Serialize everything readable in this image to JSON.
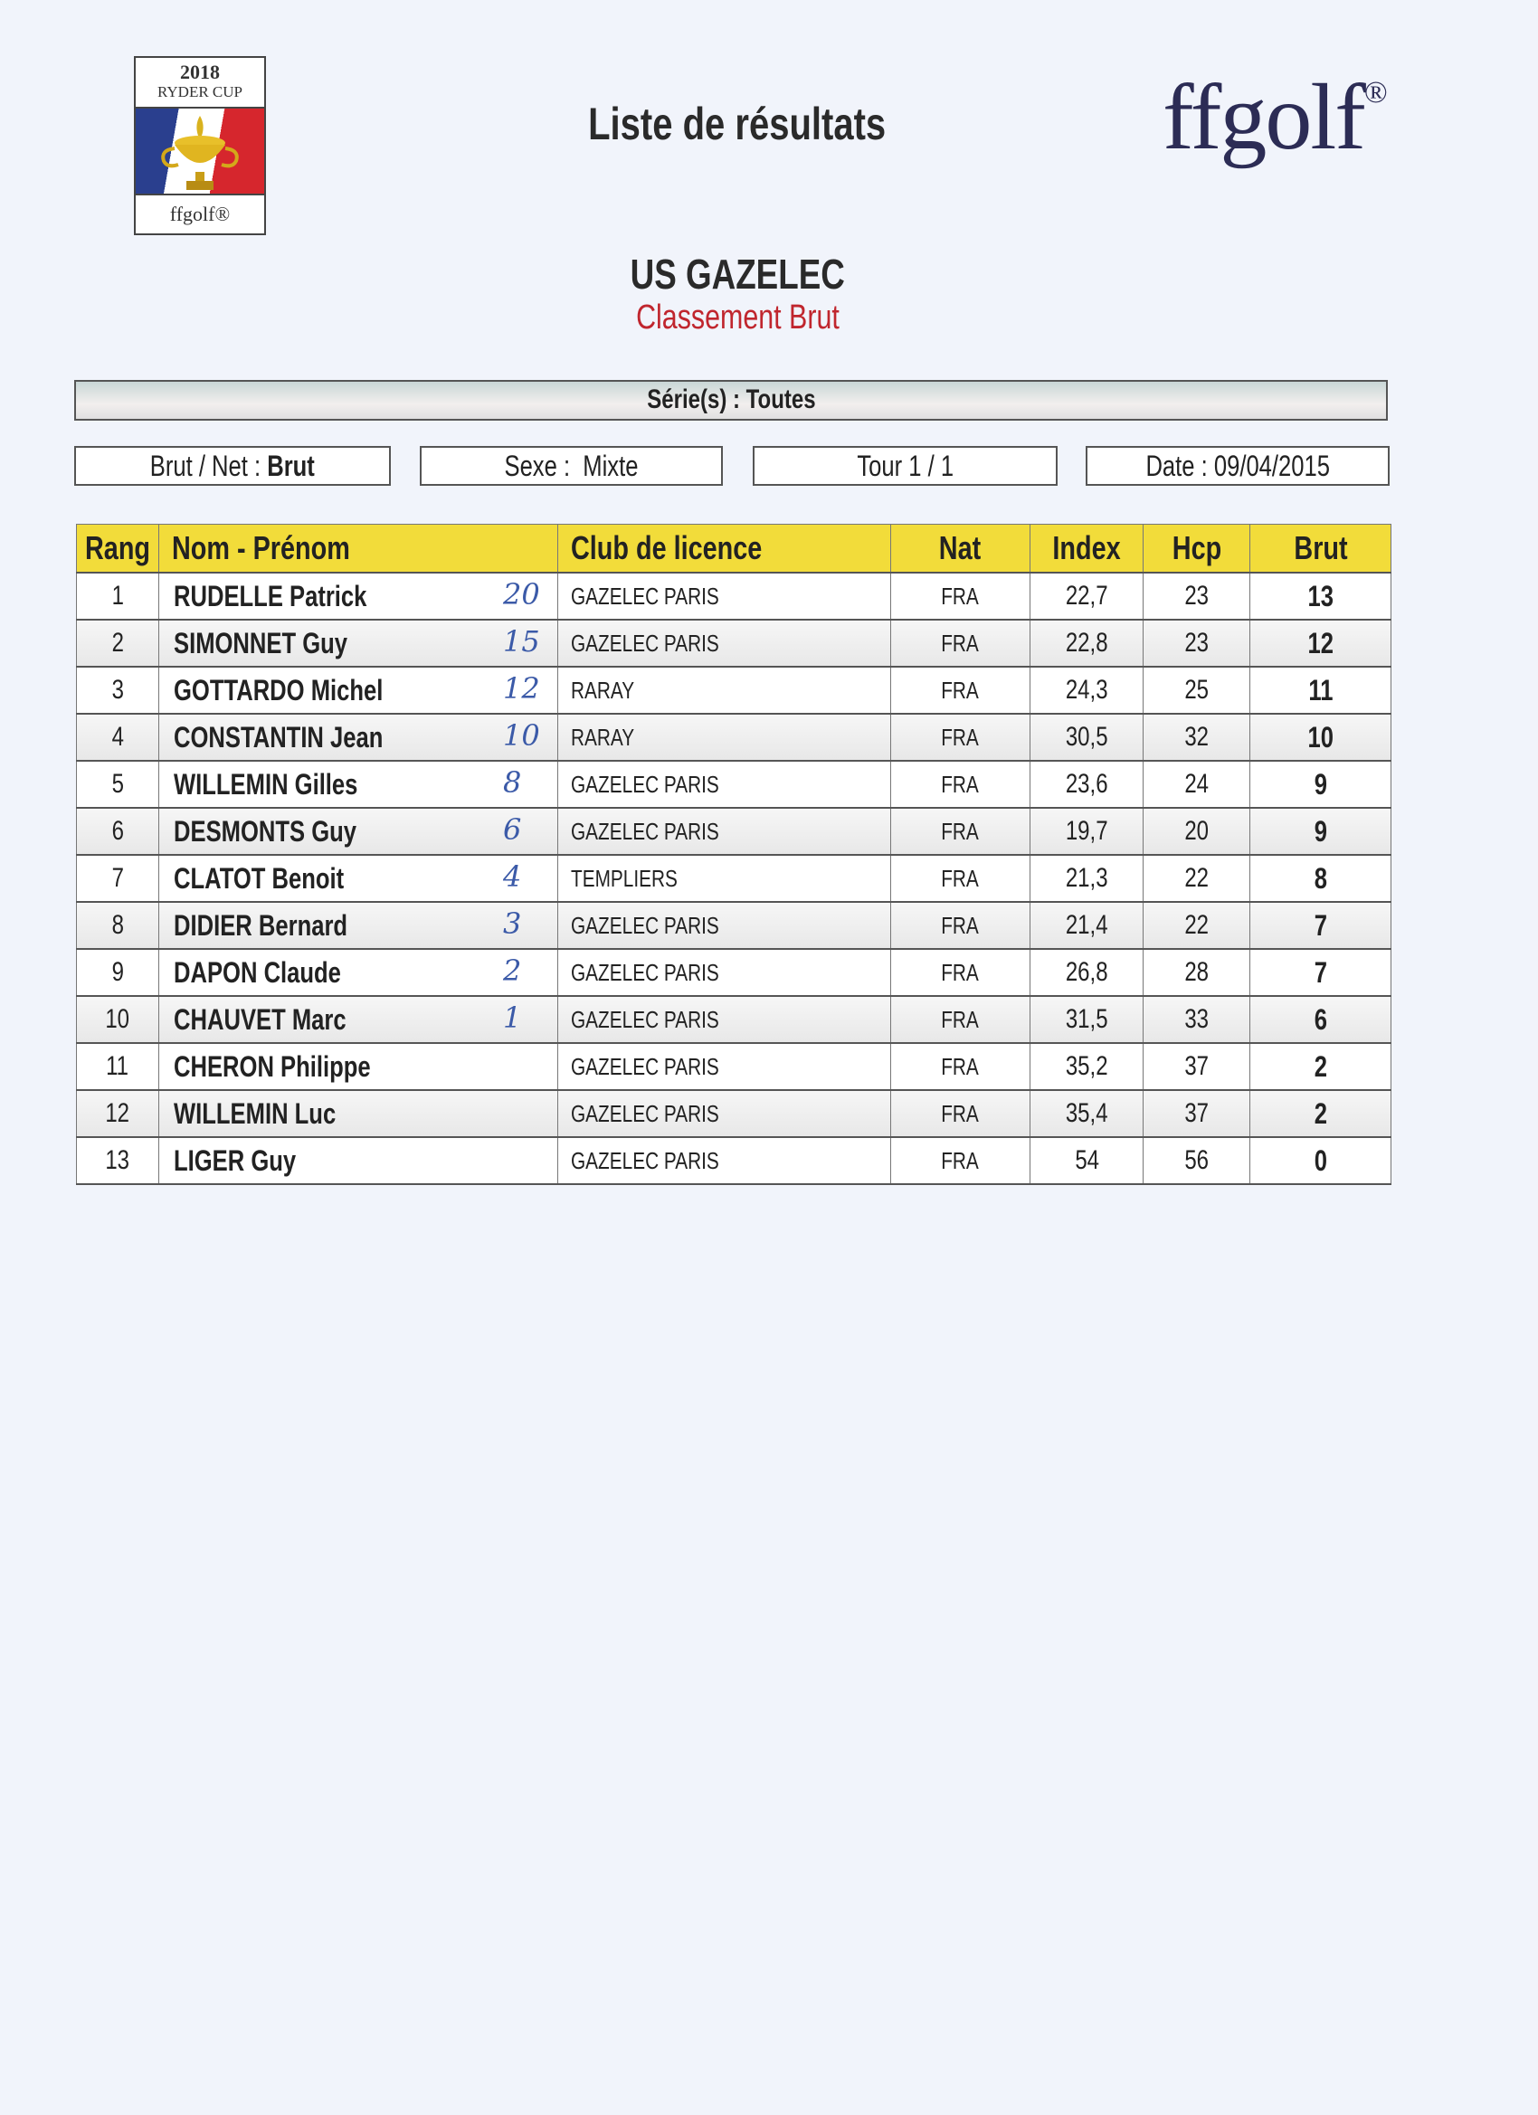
{
  "logo": {
    "year": "2018",
    "name": "RYDER CUP",
    "brand": "ffgolf®"
  },
  "header": {
    "title": "Liste de résultats",
    "brand": "ffgolf",
    "brand_mark": "®"
  },
  "club": "US GAZELEC",
  "classement": "Classement Brut",
  "series": "Série(s) : Toutes",
  "filters": {
    "brut_net_label": "Brut / Net :",
    "brut_net_value": "Brut",
    "sexe_label": "Sexe :",
    "sexe_value": "Mixte",
    "tour": "Tour 1 / 1",
    "date": "Date : 09/04/2015"
  },
  "table": {
    "columns": [
      "Rang",
      "Nom - Prénom",
      "Club de licence",
      "Nat",
      "Index",
      "Hcp",
      "Brut"
    ],
    "rows": [
      {
        "rang": "1",
        "nom": "RUDELLE Patrick",
        "hand": "20",
        "club": "GAZELEC PARIS",
        "nat": "FRA",
        "index": "22,7",
        "hcp": "23",
        "brut": "13"
      },
      {
        "rang": "2",
        "nom": "SIMONNET Guy",
        "hand": "15",
        "club": "GAZELEC PARIS",
        "nat": "FRA",
        "index": "22,8",
        "hcp": "23",
        "brut": "12"
      },
      {
        "rang": "3",
        "nom": "GOTTARDO Michel",
        "hand": "12",
        "club": "RARAY",
        "nat": "FRA",
        "index": "24,3",
        "hcp": "25",
        "brut": "11"
      },
      {
        "rang": "4",
        "nom": "CONSTANTIN Jean",
        "hand": "10",
        "club": "RARAY",
        "nat": "FRA",
        "index": "30,5",
        "hcp": "32",
        "brut": "10"
      },
      {
        "rang": "5",
        "nom": "WILLEMIN Gilles",
        "hand": "8",
        "club": "GAZELEC PARIS",
        "nat": "FRA",
        "index": "23,6",
        "hcp": "24",
        "brut": "9"
      },
      {
        "rang": "6",
        "nom": "DESMONTS Guy",
        "hand": "6",
        "club": "GAZELEC PARIS",
        "nat": "FRA",
        "index": "19,7",
        "hcp": "20",
        "brut": "9"
      },
      {
        "rang": "7",
        "nom": "CLATOT Benoit",
        "hand": "4",
        "club": "TEMPLIERS",
        "nat": "FRA",
        "index": "21,3",
        "hcp": "22",
        "brut": "8"
      },
      {
        "rang": "8",
        "nom": "DIDIER Bernard",
        "hand": "3",
        "club": "GAZELEC PARIS",
        "nat": "FRA",
        "index": "21,4",
        "hcp": "22",
        "brut": "7"
      },
      {
        "rang": "9",
        "nom": "DAPON Claude",
        "hand": "2",
        "club": "GAZELEC PARIS",
        "nat": "FRA",
        "index": "26,8",
        "hcp": "28",
        "brut": "7"
      },
      {
        "rang": "10",
        "nom": "CHAUVET Marc",
        "hand": "1",
        "club": "GAZELEC PARIS",
        "nat": "FRA",
        "index": "31,5",
        "hcp": "33",
        "brut": "6"
      },
      {
        "rang": "11",
        "nom": "CHERON Philippe",
        "hand": "",
        "club": "GAZELEC PARIS",
        "nat": "FRA",
        "index": "35,2",
        "hcp": "37",
        "brut": "2"
      },
      {
        "rang": "12",
        "nom": "WILLEMIN Luc",
        "hand": "",
        "club": "GAZELEC PARIS",
        "nat": "FRA",
        "index": "35,4",
        "hcp": "37",
        "brut": "2"
      },
      {
        "rang": "13",
        "nom": "LIGER Guy",
        "hand": "",
        "club": "GAZELEC PARIS",
        "nat": "FRA",
        "index": "54",
        "hcp": "56",
        "brut": "0"
      }
    ]
  },
  "colors": {
    "header_yellow": "#f2dc3a",
    "classement_red": "#c0262e",
    "brand_navy": "#2c2c55",
    "handwriting_blue": "#3b5aa8"
  }
}
